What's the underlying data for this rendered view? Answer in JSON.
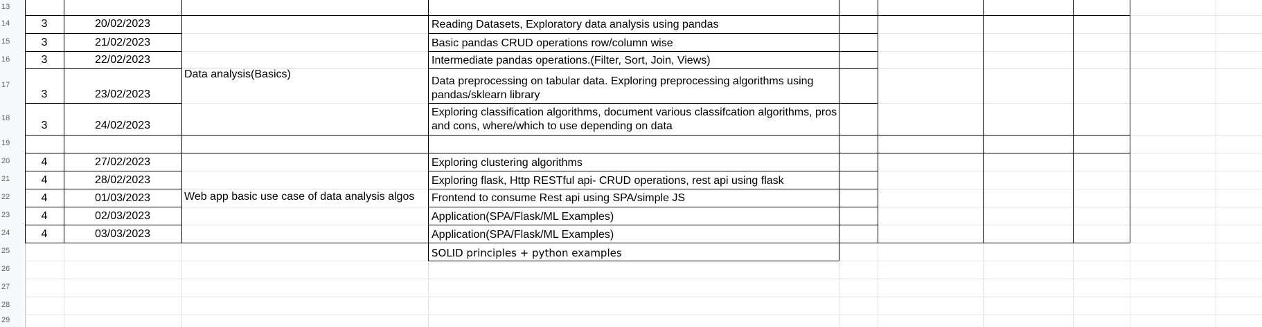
{
  "row_numbers": [
    "13",
    "14",
    "15",
    "16",
    "17",
    "18",
    "19",
    "20",
    "21",
    "22",
    "23",
    "24",
    "25",
    "26",
    "27",
    "28",
    "29"
  ],
  "block1": {
    "topic": "Data analysis(Basics)",
    "rows": [
      {
        "week": "3",
        "date": "20/02/2023",
        "task": "Reading Datasets, Exploratory data analysis using pandas"
      },
      {
        "week": "3",
        "date": "21/02/2023",
        "task": "Basic pandas CRUD operations row/column wise"
      },
      {
        "week": "3",
        "date": "22/02/2023",
        "task": "Intermediate pandas operations.(Filter, Sort, Join, Views)"
      },
      {
        "week": "3",
        "date": "23/02/2023",
        "task": "Data preprocessing on tabular data. Exploring preprocessing algorithms using pandas/sklearn library"
      },
      {
        "week": "3",
        "date": "24/02/2023",
        "task": "Exploring classification algorithms, document various classifcation algorithms, pros and cons, where/which to use depending on data"
      }
    ]
  },
  "block2": {
    "topic": "Web app basic use case of data analysis algos",
    "rows": [
      {
        "week": "4",
        "date": "27/02/2023",
        "task": "Exploring clustering algorithms"
      },
      {
        "week": "4",
        "date": "28/02/2023",
        "task": "Exploring flask, Http RESTful api- CRUD operations, rest api using flask"
      },
      {
        "week": "4",
        "date": "01/03/2023",
        "task": "Frontend to consume Rest api using SPA/simple JS"
      },
      {
        "week": "4",
        "date": "02/03/2023",
        "task": "Application(SPA/Flask/ML Examples)"
      },
      {
        "week": "4",
        "date": "03/03/2023",
        "task": "Application(SPA/Flask/ML Examples)"
      }
    ]
  },
  "extra_task": "SOLID principles + python examples"
}
